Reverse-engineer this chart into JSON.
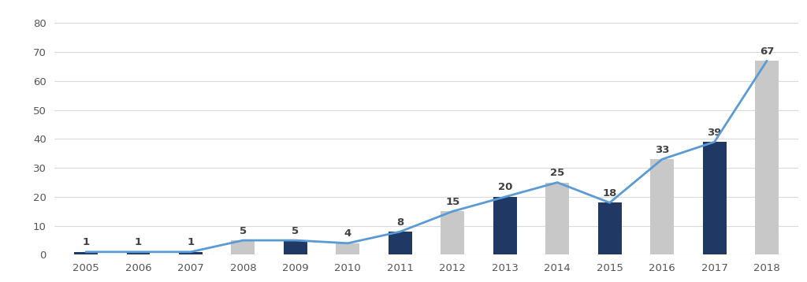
{
  "years": [
    2005,
    2006,
    2007,
    2008,
    2009,
    2010,
    2011,
    2012,
    2013,
    2014,
    2015,
    2016,
    2017,
    2018
  ],
  "values": [
    1,
    1,
    1,
    5,
    5,
    4,
    8,
    15,
    20,
    25,
    18,
    33,
    39,
    67
  ],
  "bar_colors": [
    "#1f3864",
    "#1f3864",
    "#1f3864",
    "#c8c8c8",
    "#1f3864",
    "#c8c8c8",
    "#1f3864",
    "#c8c8c8",
    "#1f3864",
    "#c8c8c8",
    "#1f3864",
    "#c8c8c8",
    "#1f3864",
    "#c8c8c8"
  ],
  "line_color": "#5b9bd5",
  "ylim": [
    0,
    85
  ],
  "yticks": [
    0,
    10,
    20,
    30,
    40,
    50,
    60,
    70,
    80
  ],
  "background_color": "#ffffff",
  "grid_color": "#d9d9d9",
  "label_fontsize": 9.5,
  "tick_fontsize": 9.5,
  "bar_width": 0.45
}
